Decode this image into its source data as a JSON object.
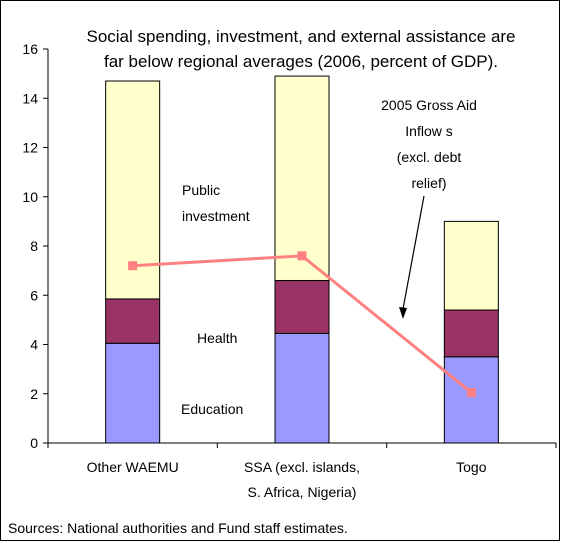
{
  "chart_data": {
    "type": "bar",
    "stacked": true,
    "title_lines": [
      "Social spending, investment, and external assistance are",
      "far below regional averages (2006, percent of GDP)."
    ],
    "categories": [
      [
        "Other WAEMU"
      ],
      [
        "SSA (excl. islands,",
        "S. Africa, Nigeria)"
      ],
      [
        "Togo"
      ]
    ],
    "ylim": [
      0,
      16
    ],
    "yticks": [
      0,
      2,
      4,
      6,
      8,
      10,
      12,
      14,
      16
    ],
    "grid": false,
    "series": [
      {
        "name": "Education",
        "values": [
          4.05,
          4.45,
          3.5
        ],
        "color": "#9999ff"
      },
      {
        "name": "Health",
        "values": [
          1.8,
          2.15,
          1.9
        ],
        "color": "#993366"
      },
      {
        "name": "Public investment",
        "values": [
          8.85,
          8.3,
          3.6
        ],
        "color": "#ffffcc"
      }
    ],
    "line_series": {
      "name": "2005 Gross Aid Inflows (excl. debt relief)",
      "values": [
        7.2,
        7.6,
        2.05
      ],
      "color": "#ff8080"
    },
    "annotations": {
      "public_investment": [
        "Public",
        "investment"
      ],
      "health": [
        "Health"
      ],
      "education": [
        "Education"
      ],
      "aid": [
        "2005 Gross Aid",
        "Inflow s",
        "(excl. debt",
        "relief)"
      ]
    }
  },
  "footer": {
    "sources": "Sources: National authorities and Fund staff estimates."
  }
}
